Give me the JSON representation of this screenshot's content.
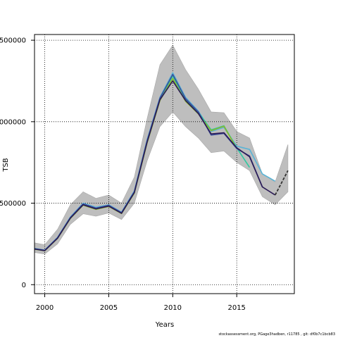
{
  "chart_data": {
    "type": "line",
    "title": "",
    "xlabel": "Years",
    "ylabel": "TSB",
    "xlim": [
      1999.2,
      2019.5
    ],
    "ylim": [
      -55000,
      1535000
    ],
    "xticks": [
      2000,
      2005,
      2010,
      2015
    ],
    "xtick_labels": [
      "2000",
      "2005",
      "2010",
      "2015"
    ],
    "yticks": [
      0,
      500000,
      1000000,
      1500000
    ],
    "ytick_labels": [
      "0",
      "500000",
      "1000000",
      "1500000"
    ],
    "grid": true,
    "band": {
      "x": [
        1999,
        2000,
        2001,
        2002,
        2003,
        2004,
        2005,
        2006,
        2007,
        2008,
        2009,
        2010,
        2011,
        2012,
        2013,
        2014,
        2015,
        2016,
        2017,
        2018,
        2019
      ],
      "upper": [
        260000,
        245000,
        340000,
        490000,
        570000,
        530000,
        550000,
        500000,
        660000,
        1020000,
        1350000,
        1470000,
        1320000,
        1200000,
        1060000,
        1055000,
        940000,
        900000,
        680000,
        630000,
        860000
      ],
      "lower": [
        200000,
        188000,
        250000,
        370000,
        435000,
        420000,
        440000,
        400000,
        500000,
        760000,
        970000,
        1060000,
        970000,
        900000,
        810000,
        820000,
        750000,
        700000,
        540000,
        490000,
        570000
      ]
    },
    "series": [
      {
        "color": "#5ab4d6",
        "x": [
          1999,
          2000,
          2001,
          2002,
          2003,
          2004,
          2005,
          2006,
          2007,
          2008,
          2009,
          2010,
          2011,
          2012,
          2013,
          2014,
          2015,
          2016,
          2017,
          2018
        ],
        "values": [
          225000,
          212000,
          290000,
          415000,
          500000,
          475000,
          490000,
          445000,
          575000,
          890000,
          1150000,
          1300000,
          1150000,
          1065000,
          940000,
          965000,
          850000,
          830000,
          680000,
          635000
        ]
      },
      {
        "color": "#2ec9a0",
        "x": [
          1999,
          2000,
          2001,
          2002,
          2003,
          2004,
          2005,
          2006,
          2007,
          2008,
          2009,
          2010,
          2011,
          2012,
          2013,
          2014,
          2015,
          2016
        ],
        "values": [
          222000,
          210000,
          287000,
          410000,
          493000,
          468000,
          485000,
          440000,
          568000,
          880000,
          1140000,
          1280000,
          1135000,
          1058000,
          950000,
          975000,
          840000,
          720000
        ]
      },
      {
        "color": "#8ab82a",
        "x": [
          1999,
          2000,
          2001,
          2002,
          2003,
          2004,
          2005,
          2006,
          2007,
          2008,
          2009,
          2010,
          2011,
          2012,
          2013,
          2014,
          2015
        ],
        "values": [
          220000,
          208000,
          284000,
          406000,
          488000,
          462000,
          480000,
          436000,
          562000,
          870000,
          1130000,
          1265000,
          1125000,
          1048000,
          945000,
          972000,
          835000
        ]
      },
      {
        "color": "#3a4f9c",
        "x": [
          1999,
          2000,
          2001,
          2002,
          2003,
          2004,
          2005,
          2006,
          2007,
          2008,
          2009,
          2010,
          2011,
          2012,
          2013,
          2014,
          2015,
          2016,
          2017
        ],
        "values": [
          223000,
          211000,
          288000,
          412000,
          496000,
          470000,
          487000,
          442000,
          571000,
          885000,
          1145000,
          1290000,
          1142000,
          1060000,
          918000,
          928000,
          835000,
          790000,
          600000
        ]
      },
      {
        "color": "#2a1a55",
        "x": [
          1999,
          2000,
          2001,
          2002,
          2003,
          2004,
          2005,
          2006,
          2007,
          2008,
          2009,
          2010,
          2011,
          2012,
          2013,
          2014,
          2015,
          2016,
          2017,
          2018
        ],
        "values": [
          221000,
          209000,
          285000,
          408000,
          490000,
          465000,
          482000,
          438000,
          565000,
          875000,
          1135000,
          1250000,
          1130000,
          1050000,
          925000,
          932000,
          840000,
          785000,
          600000,
          550000
        ]
      },
      {
        "color": "#333333",
        "dashed": true,
        "x": [
          2018,
          2019
        ],
        "values": [
          550000,
          700000
        ]
      }
    ]
  },
  "footer": "stockassessment.org, PGage3hadben, r11785 , git: df0b7c1bcb83"
}
